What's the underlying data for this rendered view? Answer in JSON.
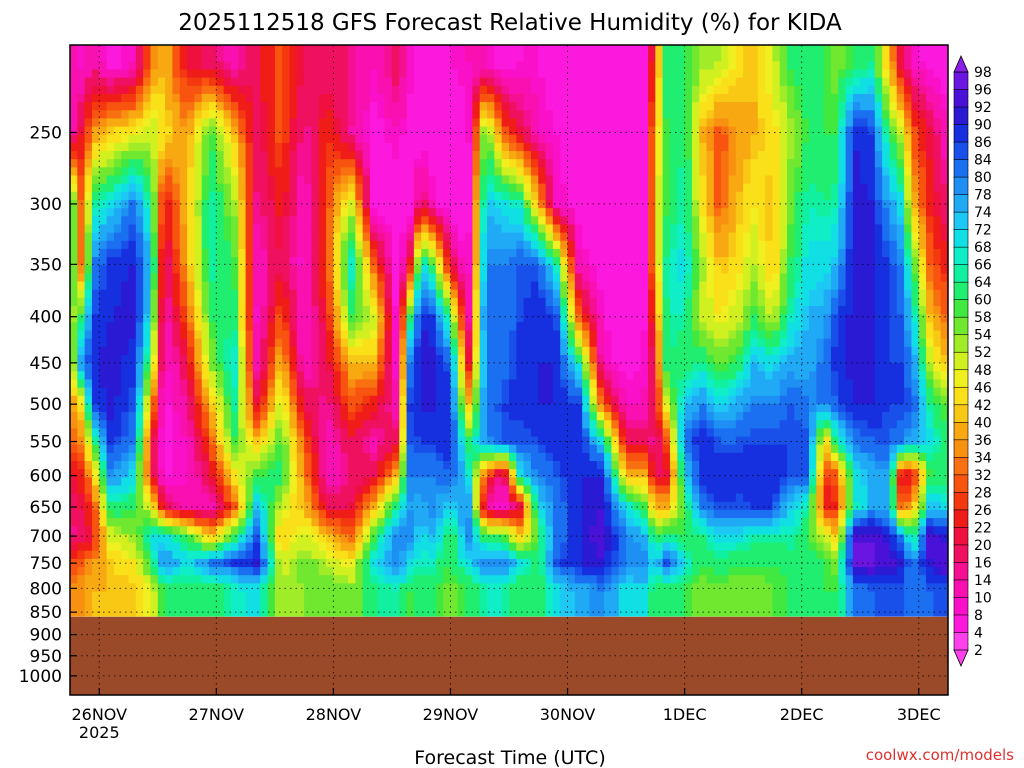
{
  "chart_data": {
    "type": "heatmap",
    "title": "2025112518 GFS Forecast Relative Humidity (%) for KIDA",
    "xlabel": "Forecast Time (UTC)",
    "ylabel": "",
    "credit": "coolwx.com/models",
    "x_ticks": [
      {
        "label": "26NOV",
        "sub": "2025",
        "day": 0.25
      },
      {
        "label": "27NOV",
        "sub": "",
        "day": 1.25
      },
      {
        "label": "28NOV",
        "sub": "",
        "day": 2.25
      },
      {
        "label": "29NOV",
        "sub": "",
        "day": 3.25
      },
      {
        "label": "30NOV",
        "sub": "",
        "day": 4.25
      },
      {
        "label": "1DEC",
        "sub": "",
        "day": 5.25
      },
      {
        "label": "2DEC",
        "sub": "",
        "day": 6.25
      },
      {
        "label": "3DEC",
        "sub": "",
        "day": 7.25
      }
    ],
    "xlim": [
      0,
      7.5
    ],
    "y_ticks": [
      250,
      300,
      350,
      400,
      450,
      500,
      550,
      600,
      650,
      700,
      750,
      800,
      850,
      900,
      950,
      1000
    ],
    "ylim_hpa": [
      200,
      1050
    ],
    "ground_pressure_hpa": 860,
    "colorbar": {
      "labels": [
        98,
        96,
        92,
        90,
        86,
        84,
        80,
        78,
        74,
        72,
        68,
        66,
        64,
        60,
        58,
        54,
        52,
        48,
        46,
        42,
        40,
        36,
        34,
        32,
        28,
        26,
        22,
        20,
        16,
        14,
        10,
        8,
        4,
        2
      ],
      "colors": [
        "#8b1fe8",
        "#6a16e0",
        "#4a12d8",
        "#2a1ad4",
        "#1630e0",
        "#1a50ea",
        "#1a70f0",
        "#1e90f4",
        "#20aaf6",
        "#1ec8f4",
        "#10e0e4",
        "#10eec8",
        "#10f0a0",
        "#20ee70",
        "#40e840",
        "#70e830",
        "#a0ec28",
        "#d0f020",
        "#f0f020",
        "#fae018",
        "#f8c814",
        "#f8a810",
        "#f89010",
        "#f87010",
        "#f85410",
        "#f43810",
        "#f01c18",
        "#f01040",
        "#f01060",
        "#f41090",
        "#f810b0",
        "#fa10c8",
        "#fc18dc",
        "#fc40ec"
      ]
    },
    "columns": [
      {
        "d": 0.0,
        "rh": [
          14,
          10,
          70,
          66,
          50,
          44,
          34,
          30,
          22,
          18,
          14,
          30,
          34
        ]
      },
      {
        "d": 0.1,
        "rh": [
          8,
          22,
          30,
          30,
          62,
          80,
          44,
          36,
          24,
          20,
          16,
          32,
          36
        ]
      },
      {
        "d": 0.2,
        "rh": [
          14,
          36,
          64,
          80,
          86,
          90,
          86,
          60,
          40,
          28,
          24,
          36,
          40
        ]
      },
      {
        "d": 0.35,
        "rh": [
          6,
          42,
          70,
          88,
          90,
          92,
          92,
          88,
          80,
          64,
          50,
          42,
          40
        ]
      },
      {
        "d": 0.55,
        "rh": [
          10,
          46,
          82,
          90,
          92,
          88,
          84,
          80,
          70,
          60,
          54,
          46,
          40
        ]
      },
      {
        "d": 0.7,
        "rh": [
          34,
          52,
          62,
          72,
          66,
          54,
          36,
          22,
          20,
          48,
          70,
          62,
          50
        ]
      },
      {
        "d": 0.8,
        "rh": [
          40,
          44,
          22,
          14,
          10,
          8,
          6,
          6,
          8,
          20,
          70,
          80,
          60
        ]
      },
      {
        "d": 1.0,
        "rh": [
          22,
          36,
          40,
          38,
          30,
          20,
          14,
          10,
          8,
          12,
          60,
          70,
          60
        ]
      },
      {
        "d": 1.2,
        "rh": [
          18,
          60,
          66,
          66,
          60,
          54,
          40,
          30,
          20,
          10,
          40,
          80,
          60
        ]
      },
      {
        "d": 1.4,
        "rh": [
          12,
          40,
          54,
          60,
          64,
          70,
          66,
          60,
          44,
          30,
          60,
          86,
          66
        ]
      },
      {
        "d": 1.6,
        "rh": [
          20,
          18,
          14,
          10,
          8,
          10,
          20,
          40,
          60,
          74,
          84,
          92,
          70
        ]
      },
      {
        "d": 1.8,
        "rh": [
          30,
          30,
          24,
          20,
          30,
          40,
          50,
          60,
          62,
          50,
          40,
          50,
          52
        ]
      },
      {
        "d": 2.0,
        "rh": [
          20,
          14,
          10,
          8,
          8,
          10,
          20,
          30,
          36,
          40,
          50,
          56,
          54
        ]
      },
      {
        "d": 2.2,
        "rh": [
          16,
          26,
          30,
          30,
          24,
          20,
          14,
          10,
          10,
          20,
          40,
          52,
          56
        ]
      },
      {
        "d": 2.4,
        "rh": [
          16,
          14,
          50,
          70,
          60,
          40,
          30,
          20,
          16,
          20,
          30,
          46,
          54
        ]
      },
      {
        "d": 2.6,
        "rh": [
          10,
          6,
          4,
          30,
          50,
          40,
          24,
          12,
          20,
          40,
          60,
          70,
          64
        ]
      },
      {
        "d": 2.8,
        "rh": [
          20,
          10,
          6,
          4,
          4,
          6,
          10,
          20,
          40,
          66,
          80,
          80,
          66
        ]
      },
      {
        "d": 2.9,
        "rh": [
          10,
          6,
          4,
          20,
          60,
          80,
          86,
          84,
          80,
          78,
          80,
          72,
          60
        ]
      },
      {
        "d": 3.0,
        "rh": [
          4,
          4,
          20,
          70,
          90,
          92,
          90,
          86,
          80,
          76,
          70,
          66,
          60
        ]
      },
      {
        "d": 3.1,
        "rh": [
          4,
          4,
          10,
          60,
          86,
          92,
          92,
          86,
          80,
          80,
          74,
          66,
          60
        ]
      },
      {
        "d": 3.25,
        "rh": [
          8,
          4,
          4,
          20,
          60,
          84,
          86,
          90,
          84,
          70,
          60,
          60,
          56
        ]
      },
      {
        "d": 3.4,
        "rh": [
          10,
          6,
          4,
          6,
          10,
          20,
          40,
          60,
          70,
          80,
          80,
          70,
          60
        ]
      },
      {
        "d": 3.55,
        "rh": [
          10,
          60,
          74,
          80,
          84,
          80,
          80,
          78,
          30,
          14,
          60,
          80,
          66
        ]
      },
      {
        "d": 3.7,
        "rh": [
          6,
          30,
          70,
          80,
          80,
          82,
          86,
          84,
          10,
          8,
          60,
          80,
          66
        ]
      },
      {
        "d": 3.85,
        "rh": [
          8,
          20,
          66,
          84,
          86,
          88,
          88,
          84,
          70,
          20,
          40,
          70,
          60
        ]
      },
      {
        "d": 4.0,
        "rh": [
          8,
          10,
          40,
          84,
          90,
          90,
          90,
          86,
          80,
          70,
          60,
          60,
          60
        ]
      },
      {
        "d": 4.15,
        "rh": [
          6,
          8,
          10,
          66,
          86,
          90,
          90,
          88,
          84,
          80,
          80,
          84,
          70
        ]
      },
      {
        "d": 4.35,
        "rh": [
          4,
          4,
          6,
          10,
          30,
          66,
          86,
          90,
          90,
          90,
          90,
          90,
          76
        ]
      },
      {
        "d": 4.55,
        "rh": [
          4,
          4,
          4,
          6,
          8,
          10,
          30,
          70,
          90,
          92,
          94,
          92,
          80
        ]
      },
      {
        "d": 4.75,
        "rh": [
          4,
          4,
          4,
          4,
          6,
          6,
          10,
          20,
          40,
          70,
          80,
          80,
          70
        ]
      },
      {
        "d": 4.9,
        "rh": [
          4,
          4,
          4,
          4,
          6,
          8,
          10,
          20,
          40,
          60,
          76,
          80,
          72
        ]
      },
      {
        "d": 5.0,
        "rh": [
          30,
          40,
          44,
          40,
          30,
          24,
          20,
          14,
          20,
          40,
          60,
          70,
          60
        ]
      },
      {
        "d": 5.1,
        "rh": [
          66,
          60,
          60,
          66,
          66,
          64,
          50,
          30,
          20,
          40,
          64,
          86,
          60
        ]
      },
      {
        "d": 5.25,
        "rh": [
          60,
          64,
          66,
          70,
          66,
          60,
          72,
          80,
          70,
          60,
          60,
          70,
          60
        ]
      },
      {
        "d": 5.4,
        "rh": [
          54,
          40,
          44,
          54,
          50,
          64,
          80,
          90,
          90,
          80,
          64,
          60,
          56
        ]
      },
      {
        "d": 5.55,
        "rh": [
          52,
          30,
          30,
          40,
          46,
          56,
          70,
          84,
          90,
          86,
          70,
          64,
          56
        ]
      },
      {
        "d": 5.7,
        "rh": [
          44,
          36,
          40,
          44,
          50,
          60,
          76,
          84,
          90,
          84,
          70,
          60,
          56
        ]
      },
      {
        "d": 5.85,
        "rh": [
          40,
          40,
          46,
          52,
          60,
          74,
          80,
          86,
          90,
          86,
          66,
          60,
          56
        ]
      },
      {
        "d": 6.0,
        "rh": [
          50,
          44,
          40,
          40,
          50,
          70,
          80,
          86,
          90,
          86,
          64,
          60,
          58
        ]
      },
      {
        "d": 6.15,
        "rh": [
          60,
          52,
          56,
          60,
          66,
          76,
          84,
          86,
          84,
          72,
          66,
          62,
          60
        ]
      },
      {
        "d": 6.3,
        "rh": [
          64,
          60,
          66,
          70,
          74,
          76,
          80,
          86,
          84,
          66,
          60,
          62,
          60
        ]
      },
      {
        "d": 6.45,
        "rh": [
          60,
          60,
          64,
          70,
          76,
          82,
          80,
          40,
          26,
          24,
          50,
          60,
          60
        ]
      },
      {
        "d": 6.55,
        "rh": [
          56,
          60,
          66,
          74,
          86,
          88,
          84,
          66,
          30,
          26,
          40,
          56,
          60
        ]
      },
      {
        "d": 6.7,
        "rh": [
          60,
          90,
          92,
          92,
          92,
          92,
          90,
          80,
          70,
          66,
          96,
          96,
          80
        ]
      },
      {
        "d": 6.85,
        "rh": [
          64,
          86,
          90,
          90,
          90,
          90,
          90,
          84,
          74,
          76,
          96,
          96,
          84
        ]
      },
      {
        "d": 7.0,
        "rh": [
          40,
          60,
          76,
          86,
          86,
          86,
          86,
          84,
          78,
          74,
          90,
          94,
          86
        ]
      },
      {
        "d": 7.1,
        "rh": [
          20,
          50,
          70,
          80,
          84,
          86,
          86,
          80,
          20,
          30,
          80,
          90,
          84
        ]
      },
      {
        "d": 7.2,
        "rh": [
          10,
          30,
          40,
          60,
          70,
          80,
          84,
          76,
          22,
          40,
          60,
          80,
          80
        ]
      },
      {
        "d": 7.35,
        "rh": [
          6,
          20,
          24,
          30,
          40,
          50,
          64,
          70,
          60,
          74,
          96,
          92,
          84
        ]
      },
      {
        "d": 7.5,
        "rh": [
          4,
          10,
          16,
          24,
          30,
          40,
          56,
          60,
          60,
          70,
          90,
          96,
          86
        ]
      }
    ],
    "column_levels_hpa": [
      210,
      250,
      300,
      350,
      400,
      450,
      500,
      550,
      600,
      650,
      700,
      750,
      800
    ]
  }
}
